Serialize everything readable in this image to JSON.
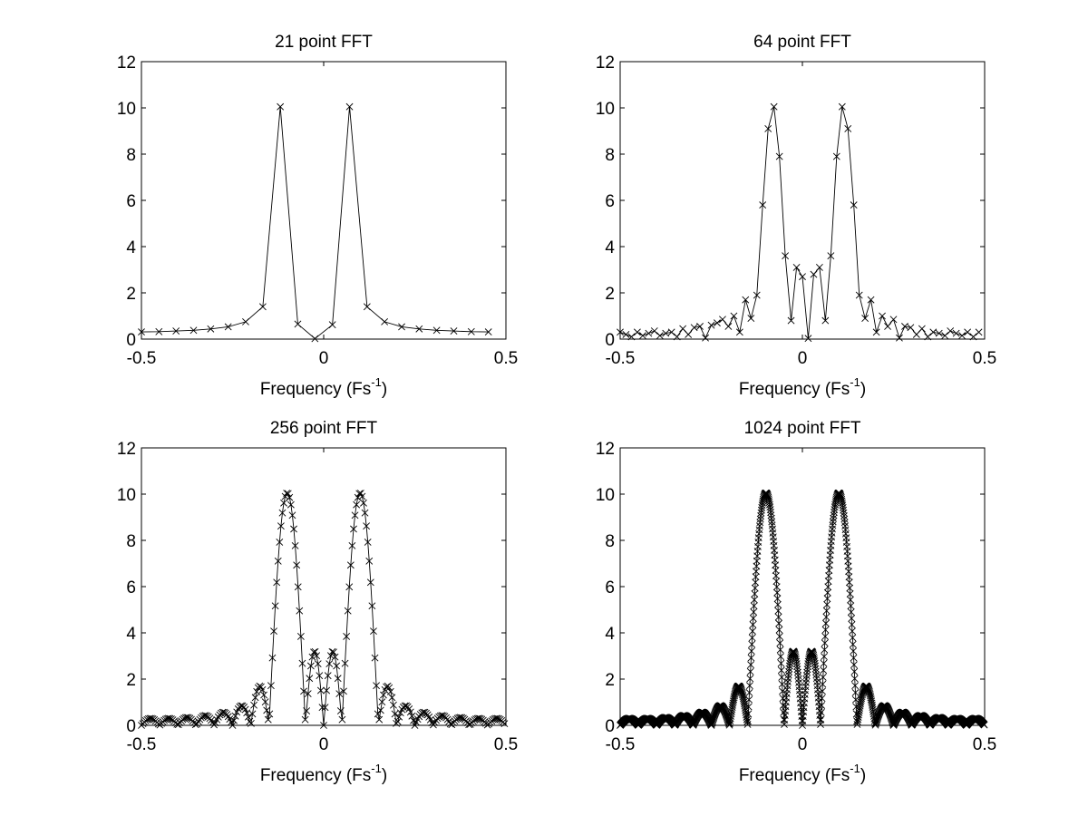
{
  "figure": {
    "background": "#ffffff",
    "line_color": "#000000"
  },
  "chart_data": [
    {
      "type": "line",
      "title": "21 point FFT",
      "xlabel": "Frequency (Fs",
      "xlabel_superscript": "-1",
      "xlabel_suffix": ")",
      "ylabel": "",
      "xlim": [
        -0.5,
        0.5
      ],
      "ylim": [
        0,
        12
      ],
      "xticks": [
        "-0.5",
        "0",
        "0.5"
      ],
      "yticks": [
        "0",
        "2",
        "4",
        "6",
        "8",
        "10",
        "12"
      ],
      "grid": false,
      "marker": "x",
      "series": [
        {
          "x": [
            -0.5,
            -0.452,
            -0.405,
            -0.357,
            -0.31,
            -0.262,
            -0.214,
            -0.167,
            -0.119,
            -0.071,
            -0.024,
            0.024,
            0.071,
            0.119,
            0.167,
            0.214,
            0.262,
            0.31,
            0.357,
            0.405,
            0.452
          ],
          "values": [
            0.31,
            0.32,
            0.35,
            0.38,
            0.44,
            0.53,
            0.75,
            1.4,
            10.05,
            0.65,
            0.02,
            0.62,
            10.05,
            1.4,
            0.75,
            0.53,
            0.44,
            0.38,
            0.35,
            0.32,
            0.31
          ]
        }
      ]
    },
    {
      "type": "line",
      "title": "64 point FFT",
      "xlabel": "Frequency (Fs",
      "xlabel_superscript": "-1",
      "xlabel_suffix": ")",
      "ylabel": "",
      "xlim": [
        -0.5,
        0.5
      ],
      "ylim": [
        0,
        12
      ],
      "xticks": [
        "-0.5",
        "0",
        "0.5"
      ],
      "yticks": [
        "0",
        "2",
        "4",
        "6",
        "8",
        "10",
        "12"
      ],
      "grid": false,
      "marker": "x",
      "series": [
        {
          "x": [
            -0.5,
            -0.484,
            -0.469,
            -0.453,
            -0.438,
            -0.422,
            -0.406,
            -0.391,
            -0.375,
            -0.359,
            -0.344,
            -0.328,
            -0.313,
            -0.297,
            -0.281,
            -0.266,
            -0.25,
            -0.234,
            -0.219,
            -0.203,
            -0.188,
            -0.172,
            -0.156,
            -0.141,
            -0.125,
            -0.109,
            -0.094,
            -0.078,
            -0.063,
            -0.047,
            -0.031,
            -0.016,
            0,
            0.016,
            0.031,
            0.047,
            0.063,
            0.078,
            0.094,
            0.109,
            0.125,
            0.141,
            0.156,
            0.172,
            0.188,
            0.203,
            0.219,
            0.234,
            0.25,
            0.266,
            0.281,
            0.297,
            0.313,
            0.328,
            0.344,
            0.359,
            0.375,
            0.391,
            0.406,
            0.422,
            0.438,
            0.453,
            0.469,
            0.484
          ],
          "values": [
            0.3,
            0.2,
            0.1,
            0.3,
            0.15,
            0.25,
            0.35,
            0.15,
            0.25,
            0.3,
            0.1,
            0.45,
            0.2,
            0.5,
            0.55,
            0.05,
            0.6,
            0.7,
            0.85,
            0.55,
            1.0,
            0.3,
            1.7,
            0.9,
            1.9,
            5.8,
            9.1,
            10.05,
            7.9,
            3.6,
            0.8,
            3.1,
            2.7,
            0.03,
            2.8,
            3.1,
            0.8,
            3.6,
            7.9,
            10.05,
            9.1,
            5.8,
            1.9,
            0.9,
            1.7,
            0.3,
            1.0,
            0.55,
            0.85,
            0.05,
            0.55,
            0.5,
            0.2,
            0.45,
            0.1,
            0.3,
            0.25,
            0.15,
            0.35,
            0.25,
            0.15,
            0.3,
            0.1,
            0.3
          ]
        }
      ]
    },
    {
      "type": "line",
      "title": "256 point FFT",
      "xlabel": "Frequency (Fs",
      "xlabel_superscript": "-1",
      "xlabel_suffix": ")",
      "ylabel": "",
      "xlim": [
        -0.5,
        0.5
      ],
      "ylim": [
        0,
        12
      ],
      "xticks": [
        "-0.5",
        "0",
        "0.5"
      ],
      "yticks": [
        "0",
        "2",
        "4",
        "6",
        "8",
        "10",
        "12"
      ],
      "grid": false,
      "marker": "x",
      "model": {
        "points": 256,
        "peak_centers": [
          -0.1,
          0.1
        ],
        "peak_height": 10.05,
        "main_lobe_halfwidth": 0.05,
        "center_lobe_height": 3.2,
        "first_sidelobe_height": 1.7,
        "floor": 0.3
      }
    },
    {
      "type": "line",
      "title": "1024 point FFT",
      "xlabel": "Frequency (Fs",
      "xlabel_superscript": "-1",
      "xlabel_suffix": ")",
      "ylabel": "",
      "xlim": [
        -0.5,
        0.5
      ],
      "ylim": [
        0,
        12
      ],
      "xticks": [
        "-0.5",
        "0",
        "0.5"
      ],
      "yticks": [
        "0",
        "2",
        "4",
        "6",
        "8",
        "10",
        "12"
      ],
      "grid": false,
      "marker": "x",
      "model": {
        "points": 1024,
        "peak_centers": [
          -0.1,
          0.1
        ],
        "peak_height": 10.05,
        "main_lobe_halfwidth": 0.05,
        "center_lobe_height": 3.2,
        "first_sidelobe_height": 1.7,
        "floor": 0.3
      }
    }
  ]
}
